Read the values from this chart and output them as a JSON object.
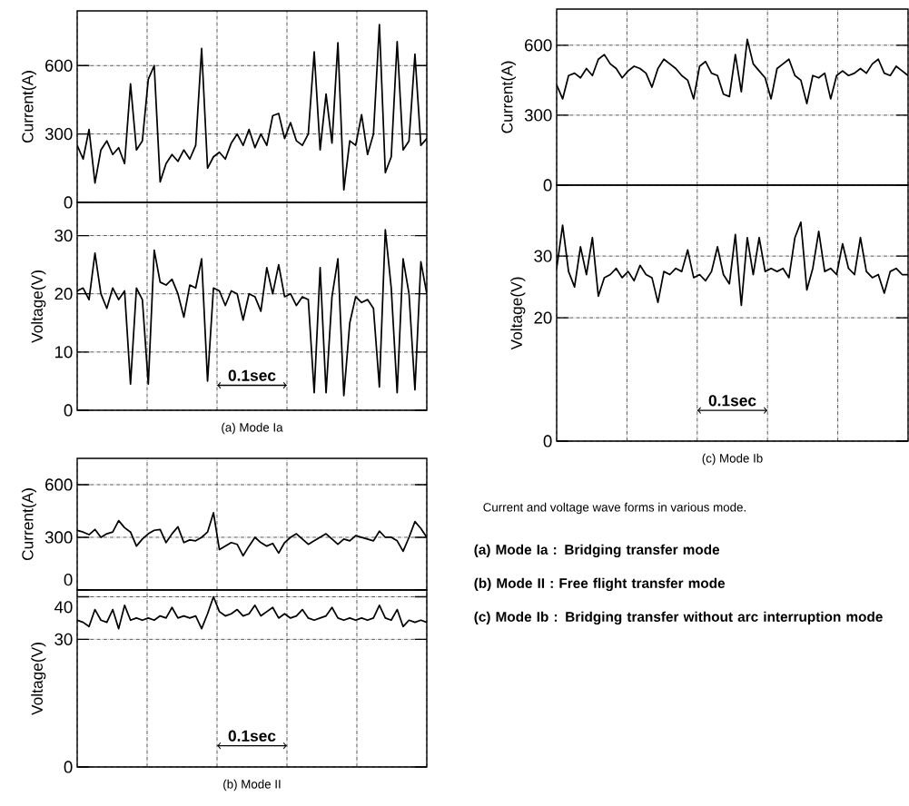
{
  "chart_data": [
    {
      "type": "line",
      "ylabel": "Current(A)",
      "categories": [
        null,
        null,
        null,
        null,
        null,
        null,
        null,
        null,
        null,
        null,
        null,
        null,
        null,
        null,
        null,
        null,
        null,
        null,
        null,
        null,
        null,
        null,
        null,
        null,
        null,
        null,
        null,
        null,
        null,
        null,
        null,
        null,
        null,
        null,
        null,
        null,
        null,
        null,
        null,
        null,
        null,
        null,
        null,
        null,
        null,
        null,
        null,
        null,
        null,
        null,
        null,
        null,
        null,
        null,
        null,
        null,
        null,
        null,
        null,
        null
      ],
      "series": [
        {
          "color": "#000000",
          "values": [
            250,
            190,
            320,
            85,
            230,
            270,
            210,
            240,
            170,
            520,
            230,
            270,
            540,
            600,
            90,
            170,
            210,
            180,
            230,
            190,
            250,
            675,
            150,
            200,
            220,
            190,
            260,
            300,
            250,
            320,
            240,
            300,
            250,
            380,
            390,
            280,
            350,
            270,
            250,
            300,
            660,
            230,
            475,
            260,
            700,
            55,
            270,
            250,
            385,
            210,
            300,
            780,
            130,
            200,
            705,
            230,
            270,
            650,
            250,
            280
          ]
        }
      ],
      "ylim": [
        0,
        840
      ],
      "yticks": [
        0,
        300,
        600
      ],
      "grid": true,
      "tick_labels": "y"
    },
    {
      "type": "line",
      "ylabel": "Voltage(V)",
      "xlabel": "(a) Mode Ia",
      "categories": [
        null,
        null,
        null,
        null,
        null,
        null,
        null,
        null,
        null,
        null,
        null,
        null,
        null,
        null,
        null,
        null,
        null,
        null,
        null,
        null,
        null,
        null,
        null,
        null,
        null,
        null,
        null,
        null,
        null,
        null,
        null,
        null,
        null,
        null,
        null,
        null,
        null,
        null,
        null,
        null,
        null,
        null,
        null,
        null,
        null,
        null,
        null,
        null,
        null,
        null,
        null,
        null,
        null,
        null,
        null,
        null,
        null,
        null,
        null,
        null
      ],
      "series": [
        {
          "color": "#000000",
          "values": [
            20.5,
            21,
            19,
            27,
            20,
            17.5,
            21,
            19,
            20.5,
            4.5,
            21,
            19,
            4.5,
            27.5,
            22,
            21.5,
            22.5,
            20,
            16,
            21.5,
            21,
            26,
            5,
            21,
            20.5,
            18,
            20.5,
            20,
            15.5,
            20,
            19.5,
            17,
            24.5,
            20,
            25,
            19.5,
            20,
            18,
            19.5,
            19,
            3,
            24.5,
            3,
            19.5,
            26,
            2.5,
            15,
            19.5,
            18.5,
            19,
            17.5,
            4,
            31,
            21,
            3,
            26,
            20,
            3.5,
            25.5,
            20
          ]
        }
      ],
      "ylim": [
        0,
        35.7
      ],
      "yticks": [
        0,
        10,
        20,
        30
      ],
      "grid": true,
      "tick_labels": "y",
      "annotations": [
        "0.1sec"
      ]
    },
    {
      "type": "line",
      "ylabel": "Current(A)",
      "categories": [
        null,
        null,
        null,
        null,
        null,
        null,
        null,
        null,
        null,
        null,
        null,
        null,
        null,
        null,
        null,
        null,
        null,
        null,
        null,
        null,
        null,
        null,
        null,
        null,
        null,
        null,
        null,
        null,
        null,
        null,
        null,
        null,
        null,
        null,
        null,
        null,
        null,
        null,
        null,
        null,
        null,
        null,
        null,
        null,
        null,
        null,
        null,
        null,
        null,
        null,
        null,
        null,
        null,
        null,
        null,
        null,
        null,
        null,
        null,
        null
      ],
      "series": [
        {
          "color": "#000000",
          "values": [
            430,
            370,
            470,
            480,
            460,
            500,
            470,
            540,
            560,
            520,
            500,
            460,
            490,
            510,
            500,
            480,
            420,
            500,
            540,
            520,
            500,
            470,
            450,
            370,
            510,
            530,
            480,
            470,
            390,
            380,
            560,
            400,
            625,
            520,
            490,
            460,
            370,
            500,
            520,
            540,
            470,
            450,
            350,
            470,
            460,
            480,
            370,
            470,
            490,
            470,
            480,
            500,
            480,
            520,
            540,
            480,
            470,
            510,
            490,
            470
          ]
        }
      ],
      "ylim": [
        0,
        755
      ],
      "yticks": [
        0,
        300,
        600
      ],
      "grid": true,
      "tick_labels": "y"
    },
    {
      "type": "line",
      "ylabel": "Voltage(V)",
      "xlabel": "(c) Mode Ib",
      "categories": [
        null,
        null,
        null,
        null,
        null,
        null,
        null,
        null,
        null,
        null,
        null,
        null,
        null,
        null,
        null,
        null,
        null,
        null,
        null,
        null,
        null,
        null,
        null,
        null,
        null,
        null,
        null,
        null,
        null,
        null,
        null,
        null,
        null,
        null,
        null,
        null,
        null,
        null,
        null,
        null,
        null,
        null,
        null,
        null,
        null,
        null,
        null,
        null,
        null,
        null,
        null,
        null,
        null,
        null,
        null,
        null,
        null,
        null,
        null,
        null
      ],
      "series": [
        {
          "color": "#000000",
          "values": [
            28,
            35,
            27.5,
            25,
            31.5,
            27,
            33,
            23.5,
            26.5,
            27,
            28,
            26.5,
            27.5,
            26,
            28.5,
            27,
            26.5,
            22.5,
            27.5,
            27,
            28,
            27.5,
            31,
            26.5,
            27,
            26,
            27.5,
            31.5,
            27,
            25.5,
            33.5,
            22,
            33,
            27,
            33,
            27.5,
            28,
            27.5,
            28,
            26.5,
            33,
            35.5,
            24.5,
            28,
            34,
            27.5,
            28,
            27,
            32,
            28,
            27,
            33,
            27.5,
            26.5,
            27,
            24,
            27.5,
            28,
            27,
            27
          ]
        }
      ],
      "ylim": [
        0,
        41.5
      ],
      "yticks": [
        0,
        20,
        30
      ],
      "grid": true,
      "tick_labels": "y",
      "annotations": [
        "0.1sec"
      ]
    },
    {
      "type": "line",
      "ylabel": "Current(A)",
      "categories": [
        null,
        null,
        null,
        null,
        null,
        null,
        null,
        null,
        null,
        null,
        null,
        null,
        null,
        null,
        null,
        null,
        null,
        null,
        null,
        null,
        null,
        null,
        null,
        null,
        null,
        null,
        null,
        null,
        null,
        null,
        null,
        null,
        null,
        null,
        null,
        null,
        null,
        null,
        null,
        null,
        null,
        null,
        null,
        null,
        null,
        null,
        null,
        null,
        null,
        null,
        null,
        null,
        null,
        null,
        null,
        null,
        null,
        null,
        null,
        null
      ],
      "series": [
        {
          "color": "#000000",
          "values": [
            340,
            330,
            315,
            345,
            300,
            320,
            330,
            395,
            355,
            330,
            250,
            290,
            320,
            340,
            345,
            270,
            320,
            360,
            270,
            285,
            280,
            300,
            330,
            440,
            230,
            250,
            270,
            260,
            195,
            250,
            300,
            270,
            250,
            265,
            210,
            270,
            300,
            320,
            290,
            260,
            280,
            300,
            320,
            290,
            260,
            290,
            280,
            310,
            300,
            290,
            280,
            335,
            300,
            300,
            280,
            220,
            300,
            390,
            350,
            300
          ]
        }
      ],
      "ylim": [
        0,
        750
      ],
      "yticks": [
        0,
        300,
        600
      ],
      "grid": true,
      "tick_labels": "y"
    },
    {
      "type": "line",
      "ylabel": "Voltage(V)",
      "xlabel": "(b) Mode II",
      "categories": [
        null,
        null,
        null,
        null,
        null,
        null,
        null,
        null,
        null,
        null,
        null,
        null,
        null,
        null,
        null,
        null,
        null,
        null,
        null,
        null,
        null,
        null,
        null,
        null,
        null,
        null,
        null,
        null,
        null,
        null,
        null,
        null,
        null,
        null,
        null,
        null,
        null,
        null,
        null,
        null,
        null,
        null,
        null,
        null,
        null,
        null,
        null,
        null,
        null,
        null,
        null,
        null,
        null,
        null,
        null,
        null,
        null,
        null,
        null,
        null
      ],
      "series": [
        {
          "color": "#000000",
          "values": [
            34.5,
            34,
            33,
            37,
            34.5,
            34,
            37,
            32.5,
            38,
            34.5,
            35,
            34.5,
            35,
            34.5,
            35.5,
            35,
            37.5,
            35,
            35.5,
            35,
            35.5,
            32.5,
            36,
            40,
            36.5,
            35.5,
            36,
            37,
            35.5,
            36,
            38,
            35.5,
            36.5,
            37.5,
            35,
            36,
            35,
            35.5,
            37,
            35,
            34.5,
            35,
            35.5,
            37.5,
            35,
            34.5,
            35,
            34.5,
            35,
            34.5,
            35,
            38,
            35,
            34.5,
            37,
            33,
            34.5,
            34,
            34.5,
            34
          ]
        }
      ],
      "ylim": [
        0,
        41.6
      ],
      "yticks": [
        0,
        30,
        40
      ],
      "grid": true,
      "tick_labels": "y",
      "annotations": [
        "0.1sec"
      ]
    },
    {
      "type": "other",
      "title": "Current and voltage wave forms in various mode.",
      "annotations": [
        "(a) Mode Ia : Bridging transfer mode",
        "(b) Mode II : Free flight transfer mode",
        "(c) Mode Ib : Bridging transfer without arc interruption mode"
      ]
    }
  ]
}
